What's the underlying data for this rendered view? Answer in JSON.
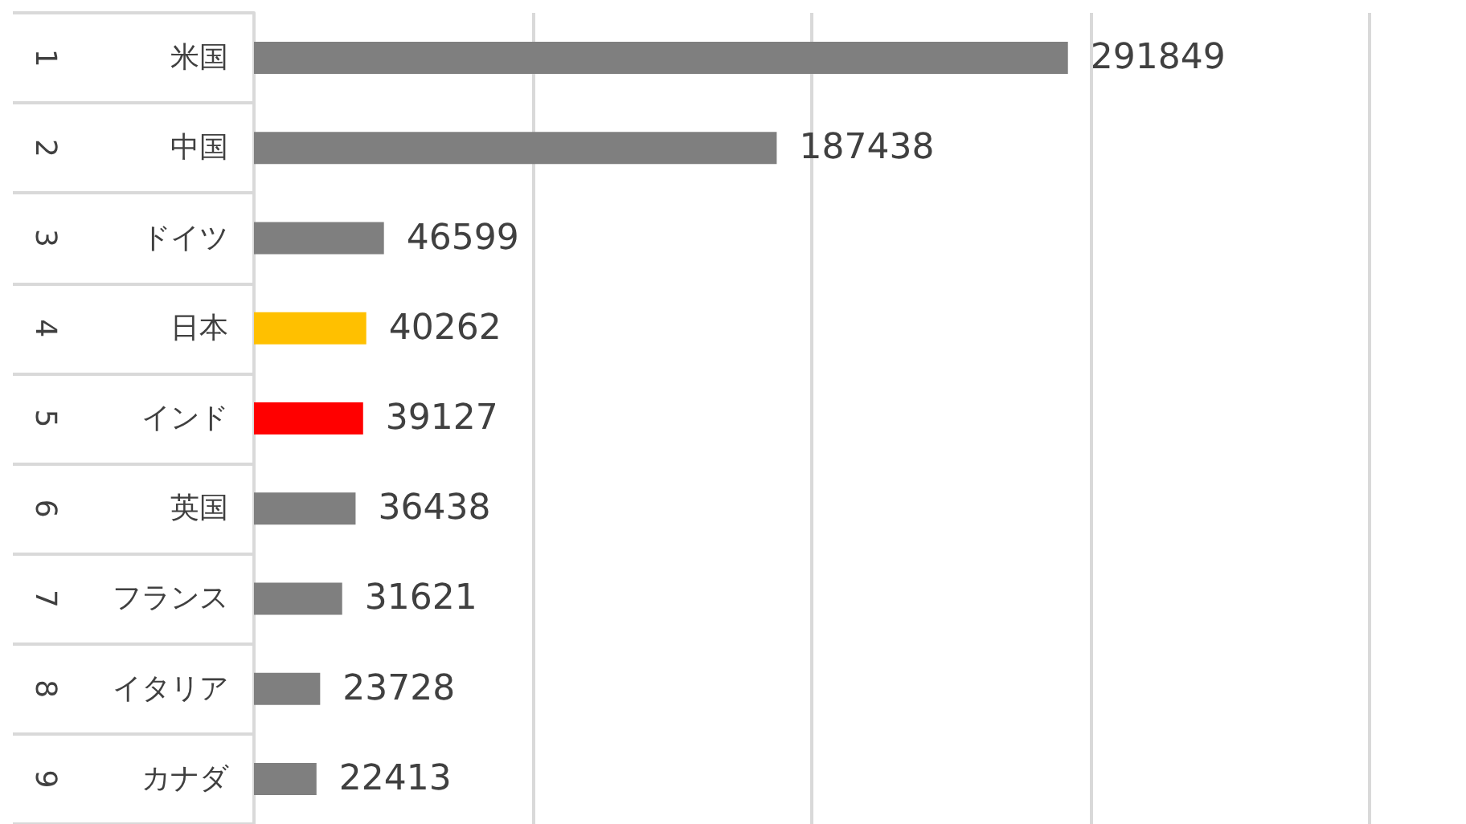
{
  "chart_data": {
    "type": "bar",
    "orientation": "horizontal",
    "categories": [
      "米国",
      "中国",
      "ドイツ",
      "日本",
      "インド",
      "英国",
      "フランス",
      "イタリア",
      "カナダ"
    ],
    "values": [
      291849,
      187438,
      46599,
      40262,
      39127,
      36438,
      31621,
      23728,
      22413
    ],
    "colors": [
      "#7f7f7f",
      "#7f7f7f",
      "#7f7f7f",
      "#ffc000",
      "#ff0000",
      "#7f7f7f",
      "#7f7f7f",
      "#7f7f7f",
      "#7f7f7f"
    ],
    "xlim": [
      0,
      400000
    ],
    "xticks": [
      {
        "value": 0,
        "label": null
      },
      {
        "value": 100000,
        "label": null
      },
      {
        "value": 200000,
        "label": null
      },
      {
        "value": 300000,
        "label": null
      },
      {
        "value": 400000,
        "label": null
      }
    ],
    "grid": "x",
    "tick_labels": "y",
    "data_labels": true,
    "annotations": [
      "1",
      "2",
      "3",
      "4",
      "5",
      "6",
      "7",
      "8",
      "9"
    ]
  }
}
